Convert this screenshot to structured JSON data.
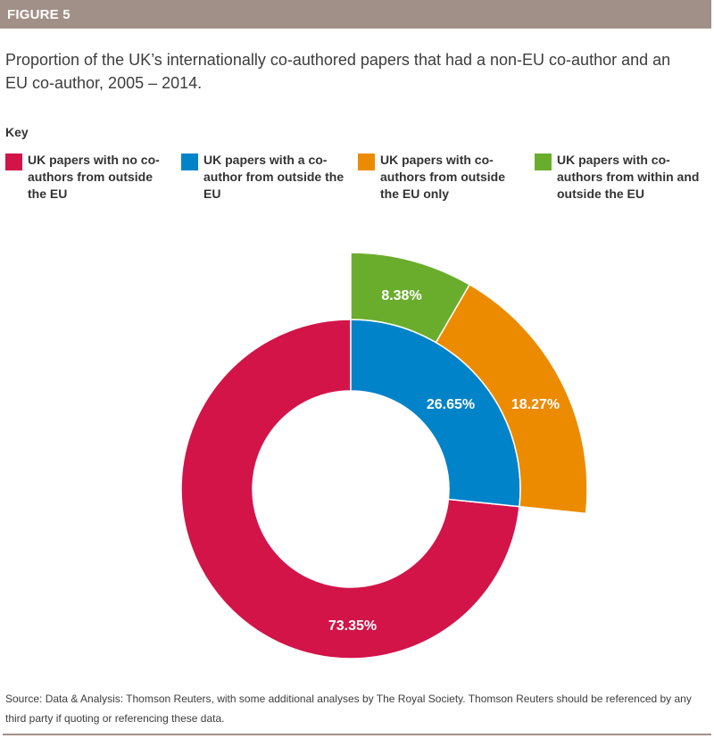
{
  "figure_label": "FIGURE 5",
  "title": "Proportion of the UK’s internationally co-authored papers that had a non-EU co-author and an EU co-author, 2005 – 2014.",
  "key_heading": "Key",
  "source": "Source: Data & Analysis: Thomson Reuters, with some additional analyses by The Royal Society. Thomson Reuters should be referenced by any third party if quoting or referencing these data.",
  "colors": {
    "banner": "#a09087",
    "no_outside_eu": "#d21449",
    "outside_eu": "#0083c9",
    "outside_eu_only": "#ec8b00",
    "within_and_outside": "#6aad2d"
  },
  "legend": [
    {
      "label": "UK papers with no co-authors from outside the EU",
      "color": "#d21449"
    },
    {
      "label": "UK papers with a co-author from outside the EU",
      "color": "#0083c9"
    },
    {
      "label": "UK papers with co-authors from outside the EU only",
      "color": "#ec8b00"
    },
    {
      "label": "UK papers with co-authors from within and outside the EU",
      "color": "#6aad2d"
    }
  ],
  "chart_data": {
    "type": "pie",
    "style": "donut with exploded outer ring for the non-EU co-author share",
    "inner_ring": [
      {
        "name": "UK papers with no co-authors from outside the EU",
        "value": 73.35,
        "label": "73.35%",
        "color": "#d21449"
      },
      {
        "name": "UK papers with a co-author from outside the EU",
        "value": 26.65,
        "label": "26.65%",
        "color": "#0083c9"
      }
    ],
    "outer_ring": [
      {
        "name": "UK papers with co-authors from within and outside the EU",
        "value": 8.38,
        "label": "8.38%",
        "color": "#6aad2d"
      },
      {
        "name": "UK papers with co-authors from outside the EU only",
        "value": 18.27,
        "label": "18.27%",
        "color": "#ec8b00"
      }
    ]
  }
}
